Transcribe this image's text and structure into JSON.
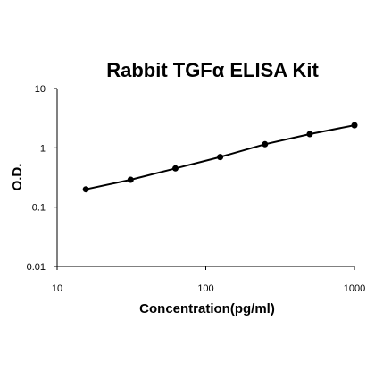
{
  "chart_data": {
    "type": "scatter",
    "title": "Rabbit TGFα ELISA Kit",
    "xlabel": "Concentration(pg/ml)",
    "ylabel": "O.D.",
    "x_scale": "log",
    "y_scale": "log",
    "xlim": [
      10,
      1000
    ],
    "ylim": [
      0.01,
      10
    ],
    "x_ticks": [
      {
        "value": 10,
        "label": "10"
      },
      {
        "value": 100,
        "label": "100"
      },
      {
        "value": 1000,
        "label": "1000"
      }
    ],
    "y_ticks": [
      {
        "value": 10,
        "label": "10"
      },
      {
        "value": 1,
        "label": "1"
      },
      {
        "value": 0.1,
        "label": "0.1"
      },
      {
        "value": 0.01,
        "label": "0.01"
      }
    ],
    "grid": false,
    "fit_line": true,
    "series": [
      {
        "x": [
          15.6,
          31.2,
          62.5,
          125,
          250,
          500,
          1000
        ],
        "y": [
          0.2,
          0.29,
          0.45,
          0.7,
          1.15,
          1.7,
          2.4
        ]
      }
    ]
  }
}
